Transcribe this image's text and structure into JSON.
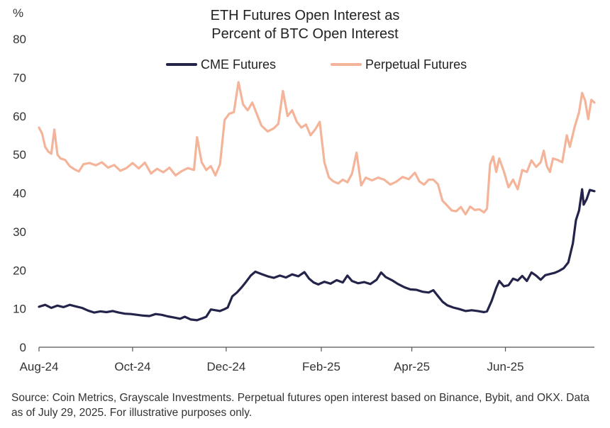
{
  "chart_data": {
    "type": "line",
    "title": "ETH Futures Open Interest as",
    "subtitle": "Percent of BTC Open Interest",
    "ylabel": "%",
    "xlabel": "",
    "ylim": [
      0,
      80
    ],
    "yticks": [
      "0",
      "10",
      "20",
      "30",
      "40",
      "50",
      "60",
      "70",
      "80"
    ],
    "xlim": [
      "2024-08-01",
      "2025-07-29"
    ],
    "xticks": [
      {
        "label": "Aug-24",
        "date": "2024-08-01"
      },
      {
        "label": "Oct-24",
        "date": "2024-10-01"
      },
      {
        "label": "Dec-24",
        "date": "2024-12-01"
      },
      {
        "label": "Feb-25",
        "date": "2025-02-01"
      },
      {
        "label": "Apr-25",
        "date": "2025-04-01"
      },
      {
        "label": "Jun-25",
        "date": "2025-06-01"
      }
    ],
    "grid": false,
    "legend": "top-center",
    "series": [
      {
        "name": "CME Futures",
        "color": "#24244a",
        "points": [
          [
            "2024-08-01",
            10.5
          ],
          [
            "2024-08-05",
            11.0
          ],
          [
            "2024-08-09",
            10.2
          ],
          [
            "2024-08-13",
            10.8
          ],
          [
            "2024-08-17",
            10.4
          ],
          [
            "2024-08-21",
            11.0
          ],
          [
            "2024-08-25",
            10.6
          ],
          [
            "2024-08-29",
            10.2
          ],
          [
            "2024-09-02",
            9.5
          ],
          [
            "2024-09-06",
            9.0
          ],
          [
            "2024-09-10",
            9.3
          ],
          [
            "2024-09-14",
            9.1
          ],
          [
            "2024-09-18",
            9.4
          ],
          [
            "2024-09-22",
            9.0
          ],
          [
            "2024-09-26",
            8.7
          ],
          [
            "2024-09-30",
            8.6
          ],
          [
            "2024-10-04",
            8.4
          ],
          [
            "2024-10-08",
            8.2
          ],
          [
            "2024-10-12",
            8.1
          ],
          [
            "2024-10-16",
            8.6
          ],
          [
            "2024-10-20",
            8.4
          ],
          [
            "2024-10-24",
            8.0
          ],
          [
            "2024-10-28",
            7.7
          ],
          [
            "2024-11-01",
            7.4
          ],
          [
            "2024-11-04",
            7.9
          ],
          [
            "2024-11-08",
            7.2
          ],
          [
            "2024-11-12",
            7.0
          ],
          [
            "2024-11-16",
            7.6
          ],
          [
            "2024-11-18",
            7.9
          ],
          [
            "2024-11-21",
            9.8
          ],
          [
            "2024-11-24",
            9.6
          ],
          [
            "2024-11-27",
            9.4
          ],
          [
            "2024-11-30",
            9.9
          ],
          [
            "2024-12-02",
            10.3
          ],
          [
            "2024-12-05",
            13.2
          ],
          [
            "2024-12-08",
            14.2
          ],
          [
            "2024-12-11",
            15.5
          ],
          [
            "2024-12-14",
            17.0
          ],
          [
            "2024-12-17",
            18.6
          ],
          [
            "2024-12-20",
            19.6
          ],
          [
            "2024-12-24",
            19.0
          ],
          [
            "2024-12-28",
            18.4
          ],
          [
            "2025-01-01",
            18.0
          ],
          [
            "2025-01-05",
            18.6
          ],
          [
            "2025-01-09",
            18.1
          ],
          [
            "2025-01-13",
            18.9
          ],
          [
            "2025-01-17",
            18.4
          ],
          [
            "2025-01-21",
            19.5
          ],
          [
            "2025-01-24",
            17.8
          ],
          [
            "2025-01-27",
            16.8
          ],
          [
            "2025-01-30",
            16.3
          ],
          [
            "2025-02-03",
            17.0
          ],
          [
            "2025-02-07",
            16.5
          ],
          [
            "2025-02-11",
            17.4
          ],
          [
            "2025-02-15",
            16.8
          ],
          [
            "2025-02-18",
            18.6
          ],
          [
            "2025-02-21",
            17.2
          ],
          [
            "2025-02-25",
            16.6
          ],
          [
            "2025-03-01",
            16.9
          ],
          [
            "2025-03-05",
            16.4
          ],
          [
            "2025-03-09",
            17.5
          ],
          [
            "2025-03-12",
            19.4
          ],
          [
            "2025-03-15",
            18.2
          ],
          [
            "2025-03-19",
            17.4
          ],
          [
            "2025-03-23",
            16.4
          ],
          [
            "2025-03-27",
            15.6
          ],
          [
            "2025-03-31",
            15.0
          ],
          [
            "2025-04-04",
            14.9
          ],
          [
            "2025-04-08",
            14.4
          ],
          [
            "2025-04-12",
            14.2
          ],
          [
            "2025-04-15",
            14.8
          ],
          [
            "2025-04-18",
            13.3
          ],
          [
            "2025-04-21",
            11.8
          ],
          [
            "2025-04-24",
            10.9
          ],
          [
            "2025-04-28",
            10.3
          ],
          [
            "2025-05-02",
            9.9
          ],
          [
            "2025-05-06",
            9.4
          ],
          [
            "2025-05-10",
            9.6
          ],
          [
            "2025-05-14",
            9.4
          ],
          [
            "2025-05-18",
            9.1
          ],
          [
            "2025-05-20",
            9.3
          ],
          [
            "2025-05-23",
            12.0
          ],
          [
            "2025-05-26",
            15.4
          ],
          [
            "2025-05-28",
            17.2
          ],
          [
            "2025-05-31",
            15.8
          ],
          [
            "2025-06-03",
            16.1
          ],
          [
            "2025-06-06",
            17.8
          ],
          [
            "2025-06-09",
            17.3
          ],
          [
            "2025-06-12",
            18.5
          ],
          [
            "2025-06-15",
            17.2
          ],
          [
            "2025-06-18",
            19.4
          ],
          [
            "2025-06-21",
            18.6
          ],
          [
            "2025-06-24",
            17.5
          ],
          [
            "2025-06-27",
            18.7
          ],
          [
            "2025-06-30",
            19.0
          ],
          [
            "2025-07-03",
            19.3
          ],
          [
            "2025-07-06",
            19.8
          ],
          [
            "2025-07-09",
            20.5
          ],
          [
            "2025-07-12",
            22.0
          ],
          [
            "2025-07-15",
            27.0
          ],
          [
            "2025-07-17",
            33.0
          ],
          [
            "2025-07-19",
            35.5
          ],
          [
            "2025-07-21",
            41.0
          ],
          [
            "2025-07-22",
            37.0
          ],
          [
            "2025-07-24",
            38.5
          ],
          [
            "2025-07-26",
            40.8
          ],
          [
            "2025-07-29",
            40.5
          ]
        ]
      },
      {
        "name": "Perpetual Futures",
        "color": "#f4b49a",
        "points": [
          [
            "2024-08-01",
            57.0
          ],
          [
            "2024-08-03",
            55.5
          ],
          [
            "2024-08-05",
            52.0
          ],
          [
            "2024-08-07",
            50.8
          ],
          [
            "2024-08-09",
            50.2
          ],
          [
            "2024-08-11",
            56.5
          ],
          [
            "2024-08-13",
            50.0
          ],
          [
            "2024-08-15",
            49.0
          ],
          [
            "2024-08-18",
            48.6
          ],
          [
            "2024-08-21",
            47.0
          ],
          [
            "2024-08-24",
            46.2
          ],
          [
            "2024-08-27",
            45.6
          ],
          [
            "2024-08-30",
            47.5
          ],
          [
            "2024-09-03",
            47.8
          ],
          [
            "2024-09-07",
            47.2
          ],
          [
            "2024-09-11",
            48.0
          ],
          [
            "2024-09-15",
            46.6
          ],
          [
            "2024-09-19",
            47.3
          ],
          [
            "2024-09-23",
            45.8
          ],
          [
            "2024-09-27",
            46.5
          ],
          [
            "2024-10-01",
            47.8
          ],
          [
            "2024-10-05",
            46.4
          ],
          [
            "2024-10-09",
            47.9
          ],
          [
            "2024-10-13",
            45.1
          ],
          [
            "2024-10-17",
            46.3
          ],
          [
            "2024-10-21",
            45.4
          ],
          [
            "2024-10-25",
            46.6
          ],
          [
            "2024-10-29",
            44.6
          ],
          [
            "2024-11-02",
            45.7
          ],
          [
            "2024-11-06",
            46.5
          ],
          [
            "2024-11-10",
            46.0
          ],
          [
            "2024-11-12",
            54.5
          ],
          [
            "2024-11-15",
            48.0
          ],
          [
            "2024-11-18",
            46.0
          ],
          [
            "2024-11-21",
            47.0
          ],
          [
            "2024-11-24",
            44.6
          ],
          [
            "2024-11-27",
            47.5
          ],
          [
            "2024-11-30",
            59.0
          ],
          [
            "2024-12-03",
            60.6
          ],
          [
            "2024-12-06",
            61.0
          ],
          [
            "2024-12-09",
            68.8
          ],
          [
            "2024-12-12",
            63.0
          ],
          [
            "2024-12-15",
            61.5
          ],
          [
            "2024-12-18",
            63.5
          ],
          [
            "2024-12-21",
            60.5
          ],
          [
            "2024-12-24",
            57.5
          ],
          [
            "2024-12-28",
            56.0
          ],
          [
            "2025-01-01",
            56.8
          ],
          [
            "2025-01-04",
            58.0
          ],
          [
            "2025-01-07",
            66.5
          ],
          [
            "2025-01-10",
            60.0
          ],
          [
            "2025-01-13",
            61.5
          ],
          [
            "2025-01-16",
            58.5
          ],
          [
            "2025-01-19",
            57.0
          ],
          [
            "2025-01-22",
            57.8
          ],
          [
            "2025-01-25",
            55.0
          ],
          [
            "2025-01-28",
            56.5
          ],
          [
            "2025-01-31",
            58.5
          ],
          [
            "2025-02-03",
            48.0
          ],
          [
            "2025-02-06",
            44.0
          ],
          [
            "2025-02-09",
            43.0
          ],
          [
            "2025-02-12",
            42.5
          ],
          [
            "2025-02-15",
            43.5
          ],
          [
            "2025-02-18",
            42.8
          ],
          [
            "2025-02-21",
            45.0
          ],
          [
            "2025-02-24",
            50.5
          ],
          [
            "2025-02-27",
            42.0
          ],
          [
            "2025-03-02",
            44.0
          ],
          [
            "2025-03-06",
            43.3
          ],
          [
            "2025-03-10",
            44.0
          ],
          [
            "2025-03-14",
            43.5
          ],
          [
            "2025-03-18",
            42.2
          ],
          [
            "2025-03-22",
            43.0
          ],
          [
            "2025-03-26",
            44.2
          ],
          [
            "2025-03-30",
            43.6
          ],
          [
            "2025-04-03",
            45.3
          ],
          [
            "2025-04-06",
            43.0
          ],
          [
            "2025-04-09",
            42.2
          ],
          [
            "2025-04-12",
            43.5
          ],
          [
            "2025-04-15",
            43.5
          ],
          [
            "2025-04-18",
            42.3
          ],
          [
            "2025-04-21",
            38.0
          ],
          [
            "2025-04-24",
            36.8
          ],
          [
            "2025-04-27",
            35.5
          ],
          [
            "2025-04-30",
            35.3
          ],
          [
            "2025-05-03",
            36.4
          ],
          [
            "2025-05-06",
            34.5
          ],
          [
            "2025-05-09",
            36.5
          ],
          [
            "2025-05-12",
            35.6
          ],
          [
            "2025-05-15",
            35.8
          ],
          [
            "2025-05-18",
            35.0
          ],
          [
            "2025-05-20",
            36.0
          ],
          [
            "2025-05-22",
            47.5
          ],
          [
            "2025-05-24",
            49.5
          ],
          [
            "2025-05-26",
            45.5
          ],
          [
            "2025-05-28",
            49.0
          ],
          [
            "2025-05-31",
            45.6
          ],
          [
            "2025-06-03",
            41.5
          ],
          [
            "2025-06-06",
            43.5
          ],
          [
            "2025-06-09",
            41.0
          ],
          [
            "2025-06-12",
            46.0
          ],
          [
            "2025-06-15",
            45.5
          ],
          [
            "2025-06-18",
            48.5
          ],
          [
            "2025-06-21",
            46.8
          ],
          [
            "2025-06-24",
            48.0
          ],
          [
            "2025-06-26",
            51.0
          ],
          [
            "2025-06-28",
            47.0
          ],
          [
            "2025-06-30",
            45.5
          ],
          [
            "2025-07-02",
            49.0
          ],
          [
            "2025-07-05",
            48.6
          ],
          [
            "2025-07-08",
            48.0
          ],
          [
            "2025-07-11",
            55.0
          ],
          [
            "2025-07-13",
            52.0
          ],
          [
            "2025-07-16",
            57.0
          ],
          [
            "2025-07-19",
            61.0
          ],
          [
            "2025-07-21",
            66.0
          ],
          [
            "2025-07-23",
            64.0
          ],
          [
            "2025-07-25",
            59.2
          ],
          [
            "2025-07-27",
            64.2
          ],
          [
            "2025-07-29",
            63.5
          ]
        ]
      }
    ]
  },
  "source_note": "Source: Coin Metrics, Grayscale Investments. Perpetual futures open interest based on Binance, Bybit, and OKX. Data as of July 29, 2025. For illustrative purposes only."
}
